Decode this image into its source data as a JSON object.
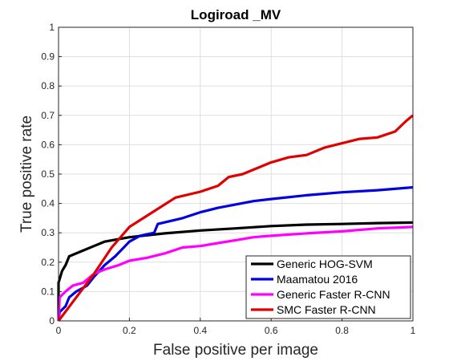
{
  "chart_data": {
    "type": "line",
    "title": "Logiroad _MV",
    "xlabel": "False positive per image",
    "ylabel": "True positive rate",
    "xlim": [
      0,
      1
    ],
    "ylim": [
      0,
      1
    ],
    "xticks": [
      0,
      0.2,
      0.4,
      0.6,
      0.8,
      1
    ],
    "yticks": [
      0,
      0.1,
      0.2,
      0.3,
      0.4,
      0.5,
      0.6,
      0.7,
      0.8,
      0.9,
      1
    ],
    "x_tick_labels": [
      "0",
      "0.2",
      "0.4",
      "0.6",
      "0.8",
      "1"
    ],
    "y_tick_labels": [
      "0",
      "0.1",
      "0.2",
      "0.3",
      "0.4",
      "0.5",
      "0.6",
      "0.7",
      "0.8",
      "0.9",
      "1"
    ],
    "grid": true,
    "legend_position": "bottom-right",
    "series": [
      {
        "name": "Generic HOG-SVM",
        "color": "#000000",
        "points": [
          [
            0,
            0.0
          ],
          [
            0.0,
            0.13
          ],
          [
            0.005,
            0.15
          ],
          [
            0.01,
            0.17
          ],
          [
            0.02,
            0.19
          ],
          [
            0.03,
            0.22
          ],
          [
            0.06,
            0.235
          ],
          [
            0.1,
            0.255
          ],
          [
            0.13,
            0.27
          ],
          [
            0.2,
            0.285
          ],
          [
            0.3,
            0.298
          ],
          [
            0.4,
            0.308
          ],
          [
            0.5,
            0.315
          ],
          [
            0.6,
            0.323
          ],
          [
            0.7,
            0.328
          ],
          [
            0.8,
            0.33
          ],
          [
            0.9,
            0.333
          ],
          [
            1.0,
            0.335
          ]
        ]
      },
      {
        "name": "Maamatou 2016",
        "color": "#0000e0",
        "points": [
          [
            0,
            0.0
          ],
          [
            0.003,
            0.03
          ],
          [
            0.02,
            0.05
          ],
          [
            0.03,
            0.08
          ],
          [
            0.05,
            0.1
          ],
          [
            0.08,
            0.12
          ],
          [
            0.1,
            0.15
          ],
          [
            0.13,
            0.19
          ],
          [
            0.16,
            0.22
          ],
          [
            0.2,
            0.27
          ],
          [
            0.23,
            0.29
          ],
          [
            0.27,
            0.3
          ],
          [
            0.28,
            0.33
          ],
          [
            0.35,
            0.35
          ],
          [
            0.4,
            0.37
          ],
          [
            0.45,
            0.385
          ],
          [
            0.55,
            0.408
          ],
          [
            0.6,
            0.415
          ],
          [
            0.7,
            0.428
          ],
          [
            0.8,
            0.438
          ],
          [
            0.9,
            0.445
          ],
          [
            1.0,
            0.455
          ]
        ]
      },
      {
        "name": "Generic Faster R-CNN",
        "color": "#ff00ff",
        "points": [
          [
            0,
            0.0
          ],
          [
            0.003,
            0.08
          ],
          [
            0.02,
            0.1
          ],
          [
            0.04,
            0.12
          ],
          [
            0.07,
            0.13
          ],
          [
            0.1,
            0.16
          ],
          [
            0.13,
            0.175
          ],
          [
            0.17,
            0.19
          ],
          [
            0.2,
            0.205
          ],
          [
            0.25,
            0.215
          ],
          [
            0.3,
            0.23
          ],
          [
            0.35,
            0.25
          ],
          [
            0.4,
            0.255
          ],
          [
            0.45,
            0.265
          ],
          [
            0.5,
            0.275
          ],
          [
            0.55,
            0.285
          ],
          [
            0.6,
            0.29
          ],
          [
            0.7,
            0.298
          ],
          [
            0.8,
            0.305
          ],
          [
            0.9,
            0.315
          ],
          [
            1.0,
            0.32
          ]
        ]
      },
      {
        "name": "SMC Faster R-CNN",
        "color": "#e00000",
        "points": [
          [
            0,
            0.0
          ],
          [
            0.05,
            0.08
          ],
          [
            0.1,
            0.16
          ],
          [
            0.15,
            0.25
          ],
          [
            0.2,
            0.32
          ],
          [
            0.33,
            0.42
          ],
          [
            0.4,
            0.44
          ],
          [
            0.45,
            0.46
          ],
          [
            0.48,
            0.49
          ],
          [
            0.52,
            0.5
          ],
          [
            0.55,
            0.515
          ],
          [
            0.6,
            0.54
          ],
          [
            0.65,
            0.557
          ],
          [
            0.7,
            0.565
          ],
          [
            0.75,
            0.59
          ],
          [
            0.8,
            0.605
          ],
          [
            0.85,
            0.62
          ],
          [
            0.9,
            0.625
          ],
          [
            0.95,
            0.645
          ],
          [
            0.98,
            0.68
          ],
          [
            1.0,
            0.7
          ]
        ]
      }
    ]
  }
}
